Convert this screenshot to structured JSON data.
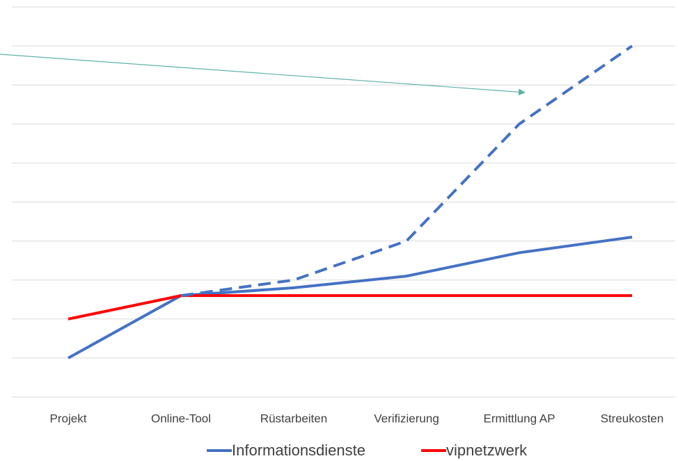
{
  "chart_data": {
    "type": "line",
    "categories": [
      "Projekt",
      "Online-Tool",
      "Rüstarbeiten",
      "Verifizierung",
      "Ermittlung AP",
      "Streukosten"
    ],
    "series": [
      {
        "name": "Informationsdienste",
        "color": "#4472c4",
        "values": [
          1.0,
          2.6,
          2.8,
          3.1,
          3.7,
          4.1
        ]
      },
      {
        "name": "vipnetzwerk",
        "color": "#ff0000",
        "values": [
          2.0,
          2.6,
          2.6,
          2.6,
          2.6,
          2.6
        ]
      },
      {
        "color": "#4472c4",
        "dashed": true,
        "values": [
          null,
          2.6,
          3.0,
          4.0,
          7.0,
          9.0
        ]
      }
    ],
    "ylim": [
      0,
      10
    ],
    "yticks": [
      0,
      1,
      2,
      3,
      4,
      5,
      6,
      7,
      8,
      9,
      10
    ],
    "grid": true,
    "legend": "bottom"
  }
}
